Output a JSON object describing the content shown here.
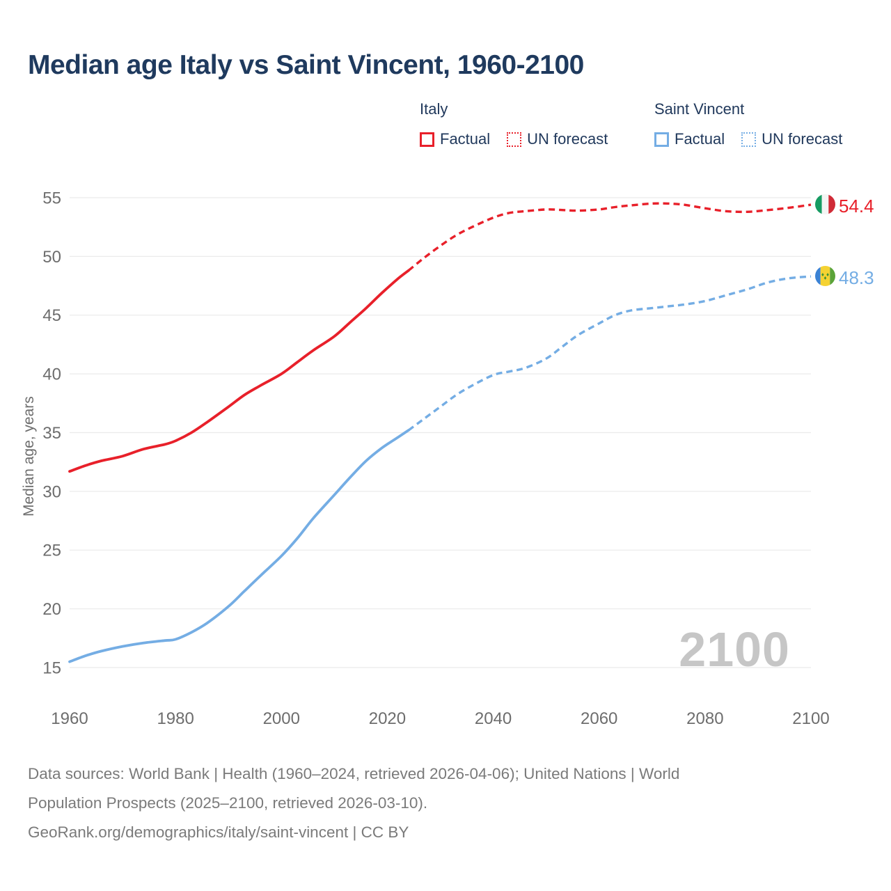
{
  "title": "Median age Italy vs Saint Vincent, 1960-2100",
  "legend": {
    "groups": [
      {
        "label": "Italy",
        "color_key": "italy",
        "items": [
          {
            "label": "Factual",
            "style": "solid"
          },
          {
            "label": "UN forecast",
            "style": "dotted"
          }
        ]
      },
      {
        "label": "Saint Vincent",
        "color_key": "saint_vincent",
        "items": [
          {
            "label": "Factual",
            "style": "solid"
          },
          {
            "label": "UN forecast",
            "style": "dotted"
          }
        ]
      }
    ]
  },
  "watermark": "2100",
  "footer": {
    "line1": "Data sources: World Bank | Health (1960–2024, retrieved 2026-04-06); United Nations | World",
    "line2": "Population Prospects (2025–2100, retrieved 2026-03-10).",
    "line3": "GeoRank.org/demographics/italy/saint-vincent | CC BY"
  },
  "colors": {
    "italy": "#e8202a",
    "saint_vincent": "#74ade4",
    "grid": "#ebebeb",
    "tick": "#6d6d6d",
    "title": "#1f3a5e",
    "footer": "#7a7a7a",
    "watermark": "#c6c6c6"
  },
  "chart_data": {
    "type": "line",
    "title": "Median age Italy vs Saint Vincent, 1960-2100",
    "xlabel": "",
    "ylabel": "Median age, years",
    "xlim": [
      1960,
      2100
    ],
    "ylim": [
      15,
      55
    ],
    "x_ticks": [
      1960,
      1980,
      2000,
      2020,
      2040,
      2060,
      2080,
      2100
    ],
    "y_ticks": [
      15,
      20,
      25,
      30,
      35,
      40,
      45,
      50,
      55
    ],
    "grid": "horizontal-only",
    "legend_position": "top-right",
    "end_labels": {
      "italy": "54.4",
      "saint_vincent": "48.3"
    },
    "series": [
      {
        "id": "italy-factual",
        "name": "Italy Factual",
        "color_key": "italy",
        "dash": false,
        "points": [
          [
            1960,
            31.7
          ],
          [
            1963,
            32.2
          ],
          [
            1966,
            32.6
          ],
          [
            1970,
            33.0
          ],
          [
            1974,
            33.6
          ],
          [
            1978,
            34.0
          ],
          [
            1980,
            34.3
          ],
          [
            1983,
            35.0
          ],
          [
            1986,
            35.9
          ],
          [
            1990,
            37.2
          ],
          [
            1993,
            38.2
          ],
          [
            1996,
            39.0
          ],
          [
            2000,
            40.0
          ],
          [
            2003,
            41.0
          ],
          [
            2006,
            42.0
          ],
          [
            2010,
            43.2
          ],
          [
            2013,
            44.4
          ],
          [
            2016,
            45.6
          ],
          [
            2019,
            46.9
          ],
          [
            2022,
            48.1
          ],
          [
            2024,
            48.8
          ]
        ]
      },
      {
        "id": "italy-forecast",
        "name": "Italy UN forecast",
        "color_key": "italy",
        "dash": true,
        "points": [
          [
            2024,
            48.8
          ],
          [
            2027,
            49.9
          ],
          [
            2030,
            50.9
          ],
          [
            2033,
            51.8
          ],
          [
            2036,
            52.5
          ],
          [
            2040,
            53.3
          ],
          [
            2043,
            53.7
          ],
          [
            2046,
            53.85
          ],
          [
            2050,
            54.0
          ],
          [
            2053,
            53.95
          ],
          [
            2056,
            53.9
          ],
          [
            2060,
            54.0
          ],
          [
            2063,
            54.2
          ],
          [
            2066,
            54.35
          ],
          [
            2070,
            54.5
          ],
          [
            2073,
            54.5
          ],
          [
            2076,
            54.4
          ],
          [
            2080,
            54.1
          ],
          [
            2084,
            53.85
          ],
          [
            2088,
            53.8
          ],
          [
            2092,
            53.95
          ],
          [
            2096,
            54.15
          ],
          [
            2100,
            54.4
          ]
        ]
      },
      {
        "id": "saint-vincent-factual",
        "name": "Saint Vincent Factual",
        "color_key": "saint_vincent",
        "dash": false,
        "points": [
          [
            1960,
            15.5
          ],
          [
            1963,
            16.0
          ],
          [
            1966,
            16.4
          ],
          [
            1970,
            16.8
          ],
          [
            1974,
            17.1
          ],
          [
            1978,
            17.3
          ],
          [
            1980,
            17.4
          ],
          [
            1983,
            18.0
          ],
          [
            1986,
            18.8
          ],
          [
            1990,
            20.2
          ],
          [
            1993,
            21.5
          ],
          [
            1996,
            22.8
          ],
          [
            2000,
            24.5
          ],
          [
            2003,
            26.0
          ],
          [
            2006,
            27.7
          ],
          [
            2010,
            29.7
          ],
          [
            2013,
            31.2
          ],
          [
            2016,
            32.6
          ],
          [
            2019,
            33.7
          ],
          [
            2022,
            34.6
          ],
          [
            2024,
            35.2
          ]
        ]
      },
      {
        "id": "saint-vincent-forecast",
        "name": "Saint Vincent UN forecast",
        "color_key": "saint_vincent",
        "dash": true,
        "points": [
          [
            2024,
            35.2
          ],
          [
            2027,
            36.2
          ],
          [
            2030,
            37.2
          ],
          [
            2033,
            38.2
          ],
          [
            2036,
            39.0
          ],
          [
            2040,
            39.9
          ],
          [
            2043,
            40.2
          ],
          [
            2046,
            40.5
          ],
          [
            2050,
            41.3
          ],
          [
            2053,
            42.3
          ],
          [
            2056,
            43.3
          ],
          [
            2060,
            44.3
          ],
          [
            2063,
            45.0
          ],
          [
            2066,
            45.4
          ],
          [
            2070,
            45.6
          ],
          [
            2073,
            45.75
          ],
          [
            2076,
            45.9
          ],
          [
            2080,
            46.2
          ],
          [
            2084,
            46.7
          ],
          [
            2088,
            47.2
          ],
          [
            2092,
            47.8
          ],
          [
            2096,
            48.15
          ],
          [
            2100,
            48.3
          ]
        ]
      }
    ]
  }
}
